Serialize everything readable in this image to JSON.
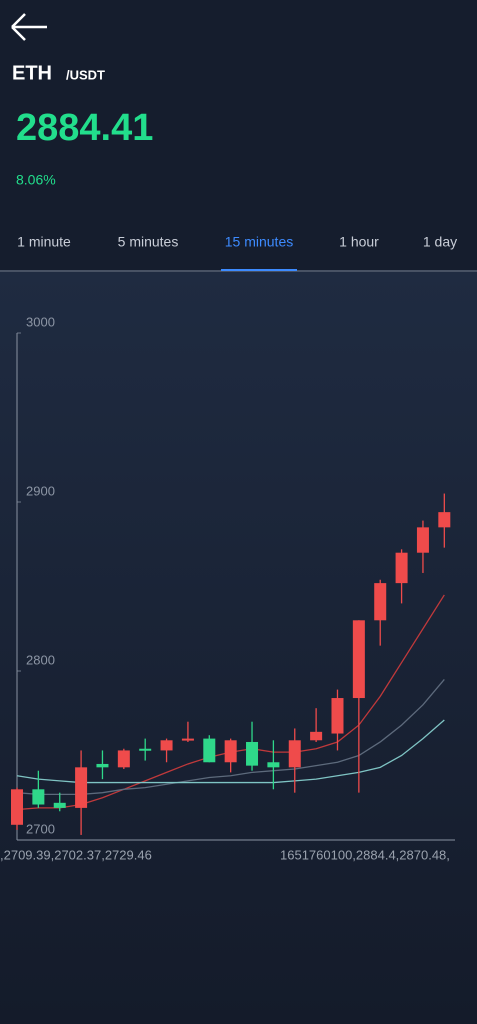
{
  "header": {
    "symbol": "ETH",
    "quote": "/USDT",
    "price": "2884.41",
    "change": "8.06%"
  },
  "tabs": {
    "items": [
      "1 minute",
      "5 minutes",
      "15 minutes",
      "1 hour",
      "1 day"
    ],
    "active": 2
  },
  "chart_data": {
    "type": "candlestick",
    "open": [
      2709,
      2730,
      2722,
      2719,
      2745,
      2743,
      2754,
      2753,
      2759,
      2760,
      2746,
      2758,
      2746,
      2743,
      2759,
      2763,
      2784,
      2830,
      2852,
      2870,
      2885
    ],
    "close": [
      2730,
      2721,
      2719,
      2743,
      2743,
      2753,
      2753,
      2759,
      2760,
      2746,
      2759,
      2744,
      2743,
      2759,
      2764,
      2784,
      2830,
      2852,
      2870,
      2885,
      2894
    ],
    "high": [
      2731,
      2741,
      2728,
      2753,
      2753,
      2754,
      2760,
      2760,
      2770,
      2762,
      2760,
      2770,
      2759,
      2766,
      2778,
      2789,
      2830,
      2854,
      2872,
      2889,
      2905
    ],
    "low": [
      2706,
      2719,
      2717,
      2703,
      2736,
      2742,
      2747,
      2746,
      2758,
      2746,
      2740,
      2741,
      2730,
      2728,
      2758,
      2753,
      2728,
      2815,
      2840,
      2858,
      2873
    ],
    "up_color": "#ef4b4b",
    "down_color": "#2fd88a",
    "moving_averages": [
      {
        "color": "#c0393b",
        "values": [
          2718,
          2719,
          2719,
          2721,
          2725,
          2730,
          2735,
          2740,
          2745,
          2749,
          2752,
          2754,
          2752,
          2752,
          2754,
          2758,
          2768,
          2785,
          2805,
          2825,
          2845
        ]
      },
      {
        "color": "#5d6a7c",
        "values": [
          2728,
          2727,
          2727,
          2727,
          2728,
          2730,
          2731,
          2733,
          2735,
          2737,
          2738,
          2740,
          2741,
          2742,
          2744,
          2746,
          2750,
          2758,
          2768,
          2780,
          2795
        ]
      },
      {
        "color": "#7fc4c4",
        "values": [
          2738,
          2736,
          2735,
          2734,
          2734,
          2734,
          2734,
          2734,
          2734,
          2734,
          2734,
          2734,
          2734,
          2735,
          2736,
          2738,
          2740,
          2743,
          2750,
          2760,
          2771
        ]
      }
    ],
    "x_labels": [
      ",2709.39,2702.37,2729.46",
      "1651760100,2884.4,2870.48,"
    ],
    "ylim": [
      2700,
      3000
    ],
    "yticks": [
      2700,
      2800,
      2900,
      3000
    ]
  }
}
